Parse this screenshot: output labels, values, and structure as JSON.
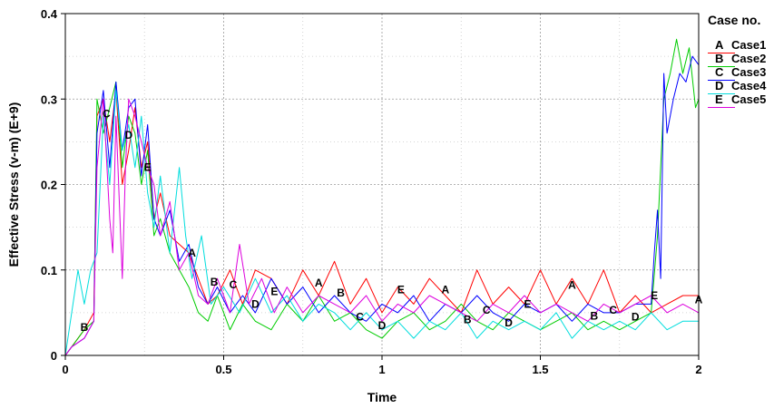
{
  "chart_data": {
    "type": "line",
    "xlabel": "Time",
    "ylabel": "Effective Stress (v-m) (E+9)",
    "xlim": [
      0,
      2
    ],
    "ylim": [
      0,
      0.4
    ],
    "xticks": [
      0,
      0.5,
      1,
      1.5,
      2
    ],
    "xtick_labels": [
      "0",
      "0.5",
      "1",
      "1.5",
      "2"
    ],
    "yticks": [
      0,
      0.1,
      0.2,
      0.3,
      0.4
    ],
    "ytick_labels": [
      "0",
      "0.1",
      "0.2",
      "0.3",
      "0.4"
    ],
    "grid": true,
    "legend_title": "Case no.",
    "legend_position": "right",
    "series": [
      {
        "name": "Case1",
        "key": "A",
        "color": "#ff0000",
        "x": [
          0,
          0.02,
          0.06,
          0.09,
          0.1,
          0.12,
          0.14,
          0.16,
          0.18,
          0.2,
          0.22,
          0.24,
          0.26,
          0.28,
          0.3,
          0.33,
          0.36,
          0.39,
          0.42,
          0.45,
          0.48,
          0.52,
          0.56,
          0.6,
          0.65,
          0.7,
          0.75,
          0.8,
          0.85,
          0.9,
          0.95,
          1.0,
          1.05,
          1.1,
          1.15,
          1.2,
          1.25,
          1.3,
          1.35,
          1.4,
          1.45,
          1.5,
          1.55,
          1.6,
          1.65,
          1.7,
          1.75,
          1.8,
          1.85,
          1.9,
          1.95,
          2.0
        ],
        "y": [
          0,
          0.01,
          0.03,
          0.05,
          0.28,
          0.3,
          0.25,
          0.31,
          0.2,
          0.24,
          0.29,
          0.22,
          0.25,
          0.16,
          0.19,
          0.14,
          0.13,
          0.12,
          0.09,
          0.06,
          0.07,
          0.1,
          0.06,
          0.1,
          0.09,
          0.06,
          0.1,
          0.07,
          0.11,
          0.06,
          0.09,
          0.05,
          0.08,
          0.06,
          0.09,
          0.07,
          0.05,
          0.1,
          0.06,
          0.08,
          0.06,
          0.1,
          0.06,
          0.09,
          0.06,
          0.1,
          0.05,
          0.07,
          0.05,
          0.06,
          0.07,
          0.07
        ],
        "label_at": [
          [
            0.4,
            0.12
          ],
          [
            0.8,
            0.085
          ],
          [
            1.2,
            0.077
          ],
          [
            1.6,
            0.082
          ],
          [
            2.0,
            0.065
          ]
        ]
      },
      {
        "name": "Case2",
        "key": "B",
        "color": "#00cc00",
        "x": [
          0,
          0.02,
          0.06,
          0.09,
          0.1,
          0.12,
          0.14,
          0.16,
          0.18,
          0.2,
          0.22,
          0.24,
          0.26,
          0.28,
          0.3,
          0.33,
          0.36,
          0.39,
          0.42,
          0.45,
          0.48,
          0.52,
          0.56,
          0.6,
          0.65,
          0.7,
          0.75,
          0.8,
          0.85,
          0.9,
          0.95,
          1.0,
          1.05,
          1.1,
          1.15,
          1.2,
          1.25,
          1.3,
          1.35,
          1.4,
          1.45,
          1.5,
          1.55,
          1.6,
          1.65,
          1.7,
          1.75,
          1.8,
          1.85,
          1.87,
          1.89,
          1.91,
          1.93,
          1.95,
          1.97,
          1.99,
          2.0
        ],
        "y": [
          0,
          0.01,
          0.03,
          0.04,
          0.3,
          0.26,
          0.29,
          0.32,
          0.22,
          0.28,
          0.26,
          0.2,
          0.24,
          0.14,
          0.16,
          0.12,
          0.1,
          0.08,
          0.05,
          0.04,
          0.07,
          0.03,
          0.06,
          0.04,
          0.03,
          0.06,
          0.04,
          0.07,
          0.04,
          0.05,
          0.03,
          0.02,
          0.04,
          0.05,
          0.03,
          0.04,
          0.06,
          0.04,
          0.03,
          0.05,
          0.04,
          0.03,
          0.04,
          0.05,
          0.03,
          0.04,
          0.03,
          0.04,
          0.05,
          0.14,
          0.3,
          0.33,
          0.37,
          0.33,
          0.36,
          0.29,
          0.3
        ],
        "label_at": [
          [
            0.06,
            0.033
          ],
          [
            0.47,
            0.086
          ],
          [
            0.87,
            0.073
          ],
          [
            1.27,
            0.042
          ],
          [
            1.67,
            0.046
          ]
        ]
      },
      {
        "name": "Case3",
        "key": "C",
        "color": "#0000ff",
        "x": [
          0,
          0.02,
          0.06,
          0.09,
          0.1,
          0.12,
          0.14,
          0.16,
          0.18,
          0.2,
          0.22,
          0.24,
          0.26,
          0.28,
          0.3,
          0.33,
          0.36,
          0.39,
          0.42,
          0.45,
          0.48,
          0.52,
          0.56,
          0.6,
          0.65,
          0.7,
          0.75,
          0.8,
          0.85,
          0.9,
          0.95,
          1.0,
          1.05,
          1.1,
          1.15,
          1.2,
          1.25,
          1.3,
          1.35,
          1.4,
          1.45,
          1.5,
          1.55,
          1.6,
          1.65,
          1.7,
          1.75,
          1.8,
          1.85,
          1.86,
          1.87,
          1.88,
          1.89,
          1.9,
          1.92,
          1.94,
          1.96,
          1.98,
          2.0
        ],
        "y": [
          0,
          0.01,
          0.02,
          0.04,
          0.26,
          0.31,
          0.22,
          0.32,
          0.24,
          0.29,
          0.3,
          0.21,
          0.27,
          0.16,
          0.14,
          0.17,
          0.11,
          0.13,
          0.08,
          0.06,
          0.08,
          0.05,
          0.07,
          0.05,
          0.09,
          0.06,
          0.08,
          0.05,
          0.07,
          0.05,
          0.04,
          0.06,
          0.05,
          0.07,
          0.04,
          0.06,
          0.05,
          0.07,
          0.05,
          0.04,
          0.06,
          0.05,
          0.06,
          0.04,
          0.06,
          0.05,
          0.05,
          0.06,
          0.06,
          0.12,
          0.17,
          0.09,
          0.33,
          0.26,
          0.3,
          0.33,
          0.32,
          0.35,
          0.34
        ],
        "label_at": [
          [
            0.13,
            0.283
          ],
          [
            0.53,
            0.083
          ],
          [
            0.93,
            0.045
          ],
          [
            1.33,
            0.053
          ],
          [
            1.73,
            0.053
          ]
        ]
      },
      {
        "name": "Case4",
        "key": "D",
        "color": "#00dddd",
        "x": [
          0,
          0.02,
          0.04,
          0.06,
          0.08,
          0.1,
          0.12,
          0.14,
          0.16,
          0.18,
          0.2,
          0.22,
          0.24,
          0.26,
          0.28,
          0.3,
          0.33,
          0.36,
          0.38,
          0.4,
          0.43,
          0.46,
          0.5,
          0.55,
          0.6,
          0.65,
          0.7,
          0.75,
          0.8,
          0.85,
          0.9,
          0.95,
          1.0,
          1.05,
          1.1,
          1.15,
          1.2,
          1.25,
          1.3,
          1.35,
          1.4,
          1.45,
          1.5,
          1.55,
          1.6,
          1.65,
          1.7,
          1.75,
          1.8,
          1.85,
          1.9,
          1.95,
          2.0
        ],
        "y": [
          0,
          0.05,
          0.1,
          0.06,
          0.1,
          0.12,
          0.28,
          0.2,
          0.31,
          0.24,
          0.27,
          0.22,
          0.28,
          0.19,
          0.15,
          0.21,
          0.12,
          0.22,
          0.14,
          0.09,
          0.14,
          0.06,
          0.08,
          0.05,
          0.09,
          0.05,
          0.07,
          0.04,
          0.06,
          0.05,
          0.03,
          0.05,
          0.03,
          0.04,
          0.02,
          0.04,
          0.03,
          0.05,
          0.02,
          0.04,
          0.03,
          0.04,
          0.03,
          0.05,
          0.02,
          0.04,
          0.03,
          0.04,
          0.03,
          0.05,
          0.03,
          0.04,
          0.04
        ],
        "label_at": [
          [
            0.2,
            0.258
          ],
          [
            0.6,
            0.06
          ],
          [
            1.0,
            0.035
          ],
          [
            1.4,
            0.038
          ],
          [
            1.8,
            0.045
          ]
        ]
      },
      {
        "name": "Case5",
        "key": "E",
        "color": "#dd00dd",
        "x": [
          0,
          0.02,
          0.06,
          0.09,
          0.1,
          0.12,
          0.14,
          0.15,
          0.16,
          0.18,
          0.19,
          0.2,
          0.22,
          0.24,
          0.26,
          0.28,
          0.3,
          0.33,
          0.36,
          0.39,
          0.42,
          0.45,
          0.48,
          0.52,
          0.55,
          0.58,
          0.62,
          0.66,
          0.7,
          0.75,
          0.8,
          0.85,
          0.9,
          0.95,
          1.0,
          1.05,
          1.1,
          1.15,
          1.2,
          1.25,
          1.3,
          1.35,
          1.4,
          1.45,
          1.5,
          1.55,
          1.6,
          1.65,
          1.7,
          1.75,
          1.8,
          1.85,
          1.9,
          1.95,
          2.0
        ],
        "y": [
          0,
          0.01,
          0.02,
          0.04,
          0.22,
          0.3,
          0.16,
          0.12,
          0.28,
          0.09,
          0.22,
          0.3,
          0.28,
          0.25,
          0.22,
          0.2,
          0.14,
          0.18,
          0.1,
          0.12,
          0.07,
          0.06,
          0.09,
          0.05,
          0.13,
          0.06,
          0.09,
          0.05,
          0.08,
          0.05,
          0.07,
          0.06,
          0.05,
          0.07,
          0.04,
          0.06,
          0.05,
          0.07,
          0.06,
          0.05,
          0.04,
          0.06,
          0.05,
          0.07,
          0.05,
          0.06,
          0.05,
          0.04,
          0.06,
          0.05,
          0.06,
          0.07,
          0.05,
          0.06,
          0.05
        ],
        "label_at": [
          [
            0.26,
            0.22
          ],
          [
            0.66,
            0.075
          ],
          [
            1.06,
            0.077
          ],
          [
            1.46,
            0.06
          ],
          [
            1.86,
            0.07
          ]
        ]
      }
    ]
  }
}
